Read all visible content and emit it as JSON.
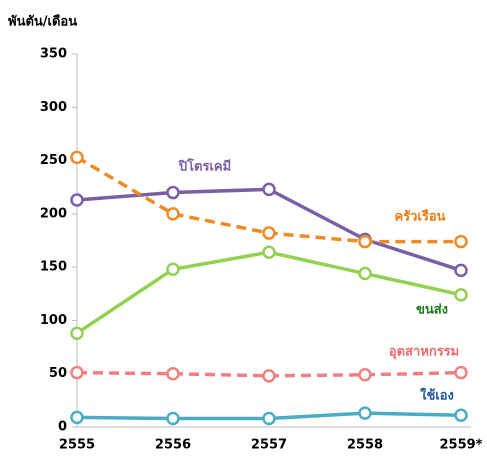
{
  "chart_data": {
    "type": "line",
    "y_label": "พันตัน/เดือน",
    "categories": [
      "2555",
      "2556",
      "2557",
      "2558",
      "2559*"
    ],
    "ylim": [
      0,
      350
    ],
    "yticks": [
      0,
      50,
      100,
      150,
      200,
      250,
      300,
      350
    ],
    "series": [
      {
        "name": "ปิโตรเคมี",
        "color": "#7b5fa6",
        "label_color": "#7b5fa6",
        "dashed": false,
        "values": [
          213,
          220,
          223,
          176,
          147
        ]
      },
      {
        "name": "ครัวเรือน",
        "color": "#f08a24",
        "label_color": "#f07a10",
        "dashed": true,
        "values": [
          253,
          200,
          182,
          174,
          174
        ]
      },
      {
        "name": "ขนส่ง",
        "color": "#92d050",
        "label_color": "#1e7a1e",
        "dashed": false,
        "values": [
          88,
          148,
          164,
          144,
          124
        ]
      },
      {
        "name": "อุตสาหกรรม",
        "color": "#f08080",
        "label_color": "#f06a6a",
        "dashed": true,
        "values": [
          51,
          50,
          48,
          49,
          51
        ]
      },
      {
        "name": "ใช้เอง",
        "color": "#4bacc6",
        "label_color": "#1f5a9a",
        "dashed": false,
        "values": [
          9,
          8,
          8,
          13,
          11
        ]
      }
    ]
  }
}
